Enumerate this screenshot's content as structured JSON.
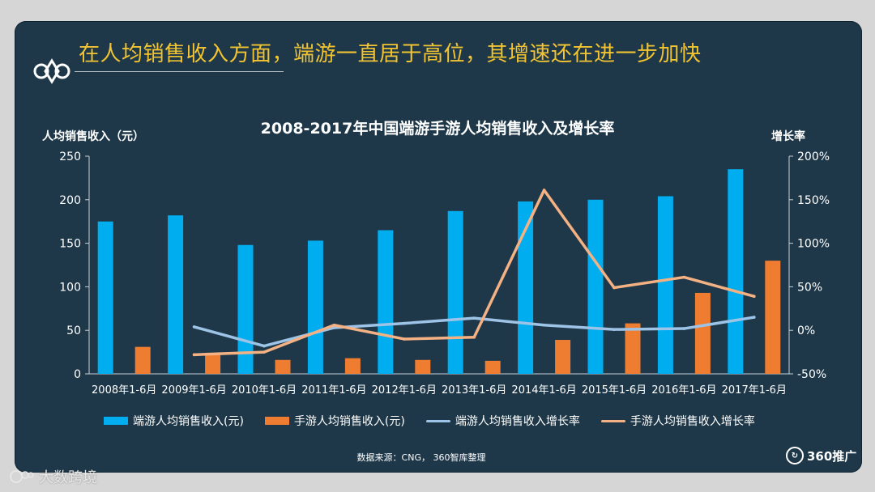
{
  "title": "在人均销售收入方面，端游一直居于高位，其增速还在进一步加快",
  "footer": {
    "source": "数据来源：CNG， 360智库整理",
    "brand": "360推广",
    "watermark": "大数跨境"
  },
  "colors": {
    "bar_pc": "#00aeef",
    "bar_mobile": "#ee7d31",
    "line_pc": "#9dc3e6",
    "line_mobile": "#f4b183",
    "title": "#f2c431",
    "background": "#1e3849"
  },
  "chart_data": {
    "type": "bar",
    "title": "2008-2017年中国端游手游人均销售收入及增长率",
    "ylabel": "人均销售收入（元）",
    "ylabel_right": "增长率",
    "categories": [
      "2008年1-6月",
      "2009年1-6月",
      "2010年1-6月",
      "2011年1-6月",
      "2012年1-6月",
      "2013年1-6月",
      "2014年1-6月",
      "2015年1-6月",
      "2016年1-6月",
      "2017年1-6月"
    ],
    "ylim": [
      0,
      250
    ],
    "yticks": [
      "0",
      "50",
      "100",
      "150",
      "200",
      "250"
    ],
    "ylim_right": [
      -50,
      200
    ],
    "yticks_right": [
      "-50%",
      "0%",
      "50%",
      "100%",
      "150%",
      "200%"
    ],
    "legend_position": "bottom",
    "grid": false,
    "series": [
      {
        "name": "端游人均销售收入(元)",
        "kind": "bar",
        "values": [
          175,
          182,
          148,
          153,
          165,
          187,
          198,
          200,
          204,
          235
        ]
      },
      {
        "name": "手游人均销售收入(元)",
        "kind": "bar",
        "values": [
          31,
          24,
          16,
          18,
          16,
          15,
          39,
          58,
          93,
          130
        ]
      },
      {
        "name": "端游人均销售收入增长率",
        "kind": "line",
        "axis": "right",
        "values": [
          null,
          4,
          -18,
          3,
          8,
          14,
          6,
          1,
          2,
          15
        ]
      },
      {
        "name": "手游人均销售收入增长率",
        "kind": "line",
        "axis": "right",
        "values": [
          null,
          -28,
          -25,
          6,
          -10,
          -8,
          161,
          49,
          61,
          39
        ]
      }
    ]
  }
}
